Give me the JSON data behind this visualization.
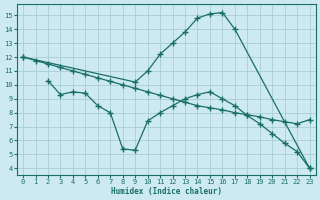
{
  "bg_color": "#cceaf0",
  "grid_color": "#aacdd8",
  "line_color": "#1a6e68",
  "xlabel": "Humidex (Indice chaleur)",
  "ylim": [
    3.5,
    15.8
  ],
  "xlim": [
    -0.5,
    23.5
  ],
  "yticks": [
    4,
    5,
    6,
    7,
    8,
    9,
    10,
    11,
    12,
    13,
    14,
    15
  ],
  "xticks": [
    0,
    1,
    2,
    3,
    4,
    5,
    6,
    7,
    8,
    9,
    10,
    11,
    12,
    13,
    14,
    15,
    16,
    17,
    18,
    19,
    20,
    21,
    22,
    23
  ],
  "line1_x": [
    0,
    9,
    10,
    11,
    12,
    13,
    14,
    15,
    16,
    17,
    23
  ],
  "line1_y": [
    12,
    10.2,
    11.0,
    12.2,
    13.0,
    13.8,
    14.8,
    15.1,
    15.2,
    14.0,
    4.0
  ],
  "line2_x": [
    0,
    1,
    2,
    3,
    4,
    5,
    6,
    7,
    8,
    9,
    10,
    11,
    12,
    13,
    14,
    15,
    16,
    17,
    18,
    19,
    20,
    21,
    22,
    23
  ],
  "line2_y": [
    12.0,
    11.75,
    11.5,
    11.25,
    11.0,
    10.75,
    10.5,
    10.25,
    10.0,
    9.75,
    9.5,
    9.25,
    9.0,
    8.75,
    8.5,
    8.35,
    8.2,
    8.0,
    7.85,
    7.7,
    7.5,
    7.35,
    7.2,
    7.5
  ],
  "line3_x": [
    2,
    3,
    4,
    5,
    6,
    7,
    8,
    9,
    10,
    11,
    12,
    13,
    14,
    15,
    16,
    17,
    18,
    19,
    20,
    21,
    22,
    23
  ],
  "line3_y": [
    10.3,
    9.3,
    9.5,
    9.4,
    8.5,
    8.0,
    5.4,
    5.3,
    7.4,
    8.0,
    8.5,
    9.0,
    9.3,
    9.5,
    9.0,
    8.5,
    7.8,
    7.2,
    6.5,
    5.8,
    5.2,
    4.0
  ],
  "marker": "+",
  "markersize": 4.0,
  "linewidth": 0.9
}
